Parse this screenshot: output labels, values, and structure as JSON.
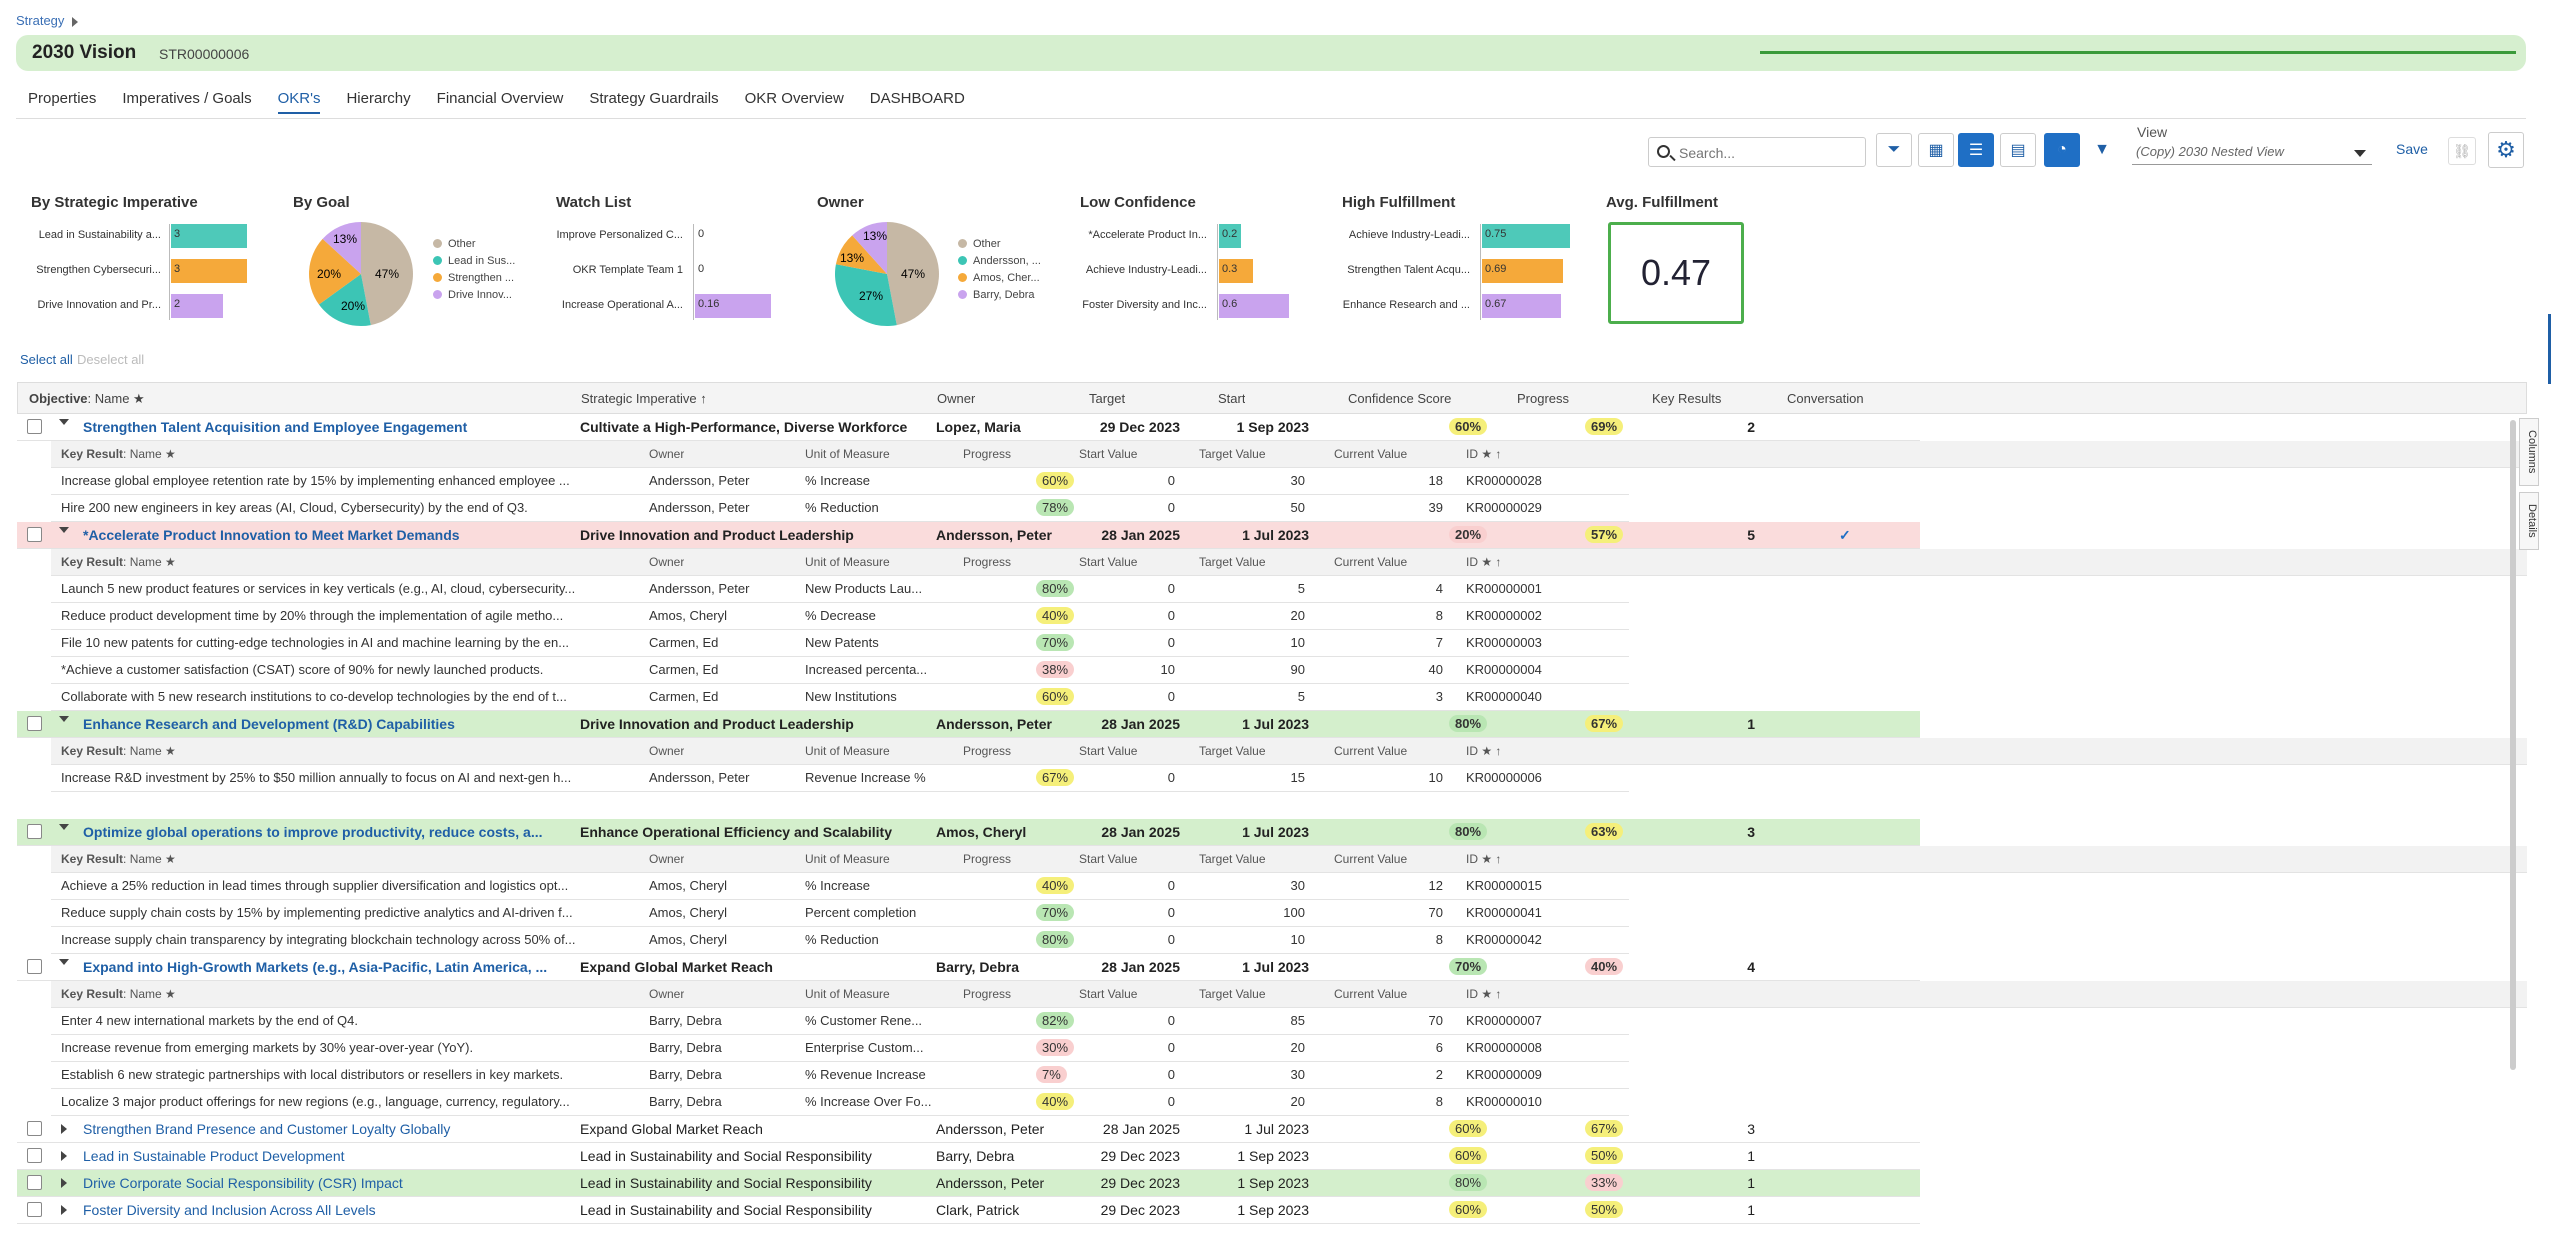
{
  "breadcrumb": "Strategy",
  "header": {
    "title": "2030 Vision",
    "code": "STR00000006"
  },
  "tabs": [
    "Properties",
    "Imperatives / Goals",
    "OKR's",
    "Hierarchy",
    "Financial Overview",
    "Strategy Guardrails",
    "OKR Overview",
    "DASHBOARD"
  ],
  "toolbar": {
    "search_placeholder": "Search...",
    "view_label": "View",
    "view_value": "(Copy) 2030 Nested View",
    "save": "Save"
  },
  "colors": {
    "accent": "#1f6fc5",
    "title_bg": "#d6efcf",
    "row_red": "#fadcdc",
    "row_green": "#d4efcc"
  },
  "widgets": {
    "imperative": {
      "title": "By Strategic Imperative",
      "rows": [
        {
          "label": "Lead in Sustainability a...",
          "value": "3"
        },
        {
          "label": "Strengthen Cybersecuri...",
          "value": "3"
        },
        {
          "label": "Drive Innovation and Pr...",
          "value": "2"
        }
      ]
    },
    "goal": {
      "title": "By Goal",
      "legend": [
        "Other",
        "Lead in Sus...",
        "Strengthen ...",
        "Drive Innov..."
      ],
      "labels": [
        "47%",
        "20%",
        "20%",
        "13%"
      ]
    },
    "watch": {
      "title": "Watch List",
      "rows": [
        {
          "label": "Improve Personalized C...",
          "value": "0"
        },
        {
          "label": "OKR Template Team 1",
          "value": "0"
        },
        {
          "label": "Increase Operational A...",
          "value": "0.16"
        }
      ]
    },
    "owner": {
      "title": "Owner",
      "legend": [
        "Other",
        "Andersson, ...",
        "Amos, Cher...",
        "Barry, Debra"
      ],
      "labels": [
        "47%",
        "27%",
        "13%",
        "13%"
      ]
    },
    "lowconf": {
      "title": "Low Confidence",
      "rows": [
        {
          "label": "*Accelerate Product In...",
          "value": "0.2"
        },
        {
          "label": "Achieve Industry-Leadi...",
          "value": "0.3"
        },
        {
          "label": "Foster Diversity and Inc...",
          "value": "0.6"
        }
      ]
    },
    "highful": {
      "title": "High Fulfillment",
      "rows": [
        {
          "label": "Achieve Industry-Leadi...",
          "value": "0.75"
        },
        {
          "label": "Strengthen Talent Acqu...",
          "value": "0.69"
        },
        {
          "label": "Enhance Research and ...",
          "value": "0.67"
        }
      ]
    },
    "avg": {
      "title": "Avg. Fulfillment",
      "value": "0.47"
    }
  },
  "selection": {
    "select_all": "Select all",
    "deselect_all": "Deselect all"
  },
  "grid": {
    "header": {
      "objective": "Objective",
      "objective_sub": ": Name ★",
      "imperative": "Strategic Imperative ↑",
      "owner": "Owner",
      "target": "Target",
      "start": "Start",
      "confidence": "Confidence Score",
      "progress": "Progress",
      "krs": "Key Results",
      "conversation": "Conversation"
    },
    "subheader": {
      "kr": "Key Result",
      "kr_sub": ": Name ★",
      "owner": "Owner",
      "uom": "Unit of Measure",
      "progress": "Progress",
      "start": "Start Value",
      "target": "Target Value",
      "current": "Current Value",
      "id": "ID ★ ↑"
    },
    "objectives": [
      {
        "name": "Strengthen Talent Acquisition and Employee Engagement",
        "imperative": "Cultivate a High-Performance, Diverse Workforce",
        "owner": "Lopez, Maria",
        "target": "29 Dec 2023",
        "start": "1 Sep 2023",
        "confidence": "60%",
        "progress": "69%",
        "krs": "2",
        "expanded": true,
        "bg": "",
        "bold": true,
        "results": [
          {
            "name": "Increase global employee retention rate by 15% by implementing enhanced employee ...",
            "owner": "Andersson, Peter",
            "uom": "% Increase",
            "progress": "60%",
            "start": "0",
            "target": "30",
            "current": "18",
            "id": "KR00000028"
          },
          {
            "name": "Hire 200 new engineers in key areas (AI, Cloud, Cybersecurity) by the end of Q3.",
            "owner": "Andersson, Peter",
            "uom": "% Reduction",
            "progress": "78%",
            "start": "0",
            "target": "50",
            "current": "39",
            "id": "KR00000029"
          }
        ]
      },
      {
        "name": "*Accelerate Product Innovation to Meet Market Demands",
        "imperative": "Drive Innovation and Product Leadership",
        "owner": "Andersson, Peter",
        "target": "28 Jan 2025",
        "start": "1 Jul 2023",
        "confidence": "20%",
        "progress": "57%",
        "krs": "5",
        "check": "✓",
        "expanded": true,
        "bg": "red",
        "bold": true,
        "results": [
          {
            "name": "Launch 5 new product features or services in key verticals (e.g., AI, cloud, cybersecurity...",
            "owner": "Andersson, Peter",
            "uom": "New Products Lau...",
            "progress": "80%",
            "start": "0",
            "target": "5",
            "current": "4",
            "id": "KR00000001"
          },
          {
            "name": "Reduce product development time by 20% through the implementation of agile metho...",
            "owner": "Amos, Cheryl",
            "uom": "% Decrease",
            "progress": "40%",
            "start": "0",
            "target": "20",
            "current": "8",
            "id": "KR00000002"
          },
          {
            "name": "File 10 new patents for cutting-edge technologies in AI and machine learning by the en...",
            "owner": "Carmen, Ed",
            "uom": "New Patents",
            "progress": "70%",
            "start": "0",
            "target": "10",
            "current": "7",
            "id": "KR00000003"
          },
          {
            "name": "*Achieve a customer satisfaction (CSAT) score of 90% for newly launched products.",
            "owner": "Carmen, Ed",
            "uom": "Increased percenta...",
            "progress": "38%",
            "start": "10",
            "target": "90",
            "current": "40",
            "id": "KR00000004"
          },
          {
            "name": "Collaborate with 5 new research institutions to co-develop technologies by the end of t...",
            "owner": "Carmen, Ed",
            "uom": "New Institutions",
            "progress": "60%",
            "start": "0",
            "target": "5",
            "current": "3",
            "id": "KR00000040"
          }
        ]
      },
      {
        "name": "Enhance Research and Development (R&D) Capabilities",
        "imperative": "Drive Innovation and Product Leadership",
        "owner": "Andersson, Peter",
        "target": "28 Jan 2025",
        "start": "1 Jul 2023",
        "confidence": "80%",
        "progress": "67%",
        "krs": "1",
        "expanded": true,
        "bg": "green",
        "bold": true,
        "results": [
          {
            "name": "Increase R&D investment by 25% to $50 million annually to focus on AI and next-gen h...",
            "owner": "Andersson, Peter",
            "uom": "Revenue Increase %",
            "progress": "67%",
            "start": "0",
            "target": "15",
            "current": "10",
            "id": "KR00000006"
          }
        ]
      },
      {
        "name": "Optimize global operations to improve productivity, reduce costs, a...",
        "imperative": "Enhance Operational Efficiency and Scalability",
        "owner": "Amos, Cheryl",
        "target": "28 Jan 2025",
        "start": "1 Jul 2023",
        "confidence": "80%",
        "progress": "63%",
        "krs": "3",
        "expanded": true,
        "bg": "green",
        "bold": true,
        "results": [
          {
            "name": "Achieve a 25% reduction in lead times through supplier diversification and logistics opt...",
            "owner": "Amos, Cheryl",
            "uom": "% Increase",
            "progress": "40%",
            "start": "0",
            "target": "30",
            "current": "12",
            "id": "KR00000015"
          },
          {
            "name": "Reduce supply chain costs by 15% by implementing predictive analytics and AI-driven f...",
            "owner": "Amos, Cheryl",
            "uom": "Percent completion",
            "progress": "70%",
            "start": "0",
            "target": "100",
            "current": "70",
            "id": "KR00000041"
          },
          {
            "name": "Increase supply chain transparency by integrating blockchain technology across 50% of...",
            "owner": "Amos, Cheryl",
            "uom": "% Reduction",
            "progress": "80%",
            "start": "0",
            "target": "10",
            "current": "8",
            "id": "KR00000042"
          }
        ]
      },
      {
        "name": "Expand into High-Growth Markets (e.g., Asia-Pacific, Latin America, ...",
        "imperative": "Expand Global Market Reach",
        "owner": "Barry, Debra",
        "target": "28 Jan 2025",
        "start": "1 Jul 2023",
        "confidence": "70%",
        "progress": "40%",
        "krs": "4",
        "expanded": true,
        "bg": "",
        "bold": true,
        "results": [
          {
            "name": "Enter 4 new international markets by the end of Q4.",
            "owner": "Barry, Debra",
            "uom": "% Customer Rene...",
            "progress": "82%",
            "start": "0",
            "target": "85",
            "current": "70",
            "id": "KR00000007"
          },
          {
            "name": "Increase revenue from emerging markets by 30% year-over-year (YoY).",
            "owner": "Barry, Debra",
            "uom": "Enterprise Custom...",
            "progress": "30%",
            "start": "0",
            "target": "20",
            "current": "6",
            "id": "KR00000008"
          },
          {
            "name": "Establish 6 new strategic partnerships with local distributors or resellers in key markets.",
            "owner": "Barry, Debra",
            "uom": "% Revenue Increase",
            "progress": "7%",
            "start": "0",
            "target": "30",
            "current": "2",
            "id": "KR00000009"
          },
          {
            "name": "Localize 3 major product offerings for new regions (e.g., language, currency, regulatory...",
            "owner": "Barry, Debra",
            "uom": "% Increase Over Fo...",
            "progress": "40%",
            "start": "0",
            "target": "20",
            "current": "8",
            "id": "KR00000010"
          }
        ]
      },
      {
        "name": "Strengthen Brand Presence and Customer Loyalty Globally",
        "imperative": "Expand Global Market Reach",
        "owner": "Andersson, Peter",
        "target": "28 Jan 2025",
        "start": "1 Jul 2023",
        "confidence": "60%",
        "progress": "67%",
        "krs": "3",
        "expanded": false,
        "bg": "",
        "bold": false
      },
      {
        "name": "Lead in Sustainable Product Development",
        "imperative": "Lead in Sustainability and Social Responsibility",
        "owner": "Barry, Debra",
        "target": "29 Dec 2023",
        "start": "1 Sep 2023",
        "confidence": "60%",
        "progress": "50%",
        "krs": "1",
        "expanded": false,
        "bg": "",
        "bold": false
      },
      {
        "name": "Drive Corporate Social Responsibility (CSR) Impact",
        "imperative": "Lead in Sustainability and Social Responsibility",
        "owner": "Andersson, Peter",
        "target": "29 Dec 2023",
        "start": "1 Sep 2023",
        "confidence": "80%",
        "progress": "33%",
        "krs": "1",
        "expanded": false,
        "bg": "green",
        "bold": false
      },
      {
        "name": "Foster Diversity and Inclusion Across All Levels",
        "imperative": "Lead in Sustainability and Social Responsibility",
        "owner": "Clark, Patrick",
        "target": "29 Dec 2023",
        "start": "1 Sep 2023",
        "confidence": "60%",
        "progress": "50%",
        "krs": "1",
        "expanded": false,
        "bg": "",
        "bold": false
      }
    ]
  },
  "sidetabs": {
    "columns": "Columns",
    "details": "Details"
  }
}
